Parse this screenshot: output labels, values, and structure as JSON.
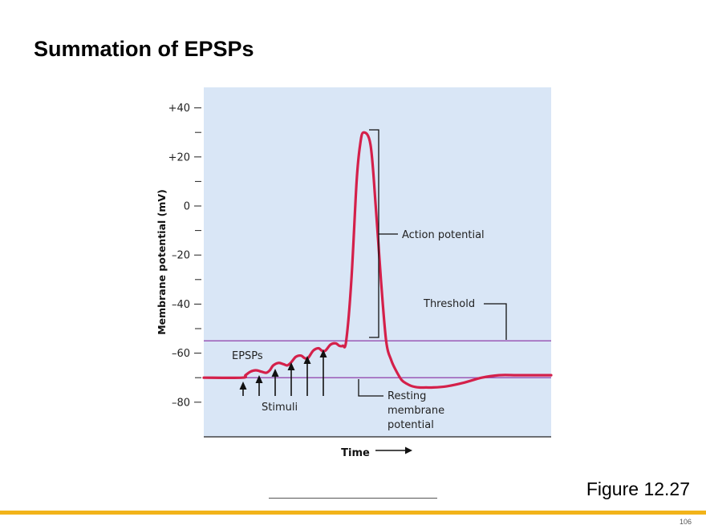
{
  "slide": {
    "title": "Summation of EPSPs",
    "figure_label": "Figure 12.27",
    "page_number": "106"
  },
  "colors": {
    "plot_bg": "#d9e6f6",
    "trace": "#d4204a",
    "threshold_line": "#9b59b6",
    "resting_line": "#9b59b6",
    "footer_accent": "#f2b31a"
  },
  "chart_data": {
    "type": "line",
    "title": "",
    "xlabel": "Time",
    "ylabel": "Membrane potential (mV)",
    "ylim": [
      -95,
      45
    ],
    "y_ticks": [
      40,
      20,
      0,
      -20,
      -40,
      -60,
      -80
    ],
    "y_tick_labels": [
      "+40",
      "+20",
      "0",
      "–20",
      "–40",
      "–60",
      "–80"
    ],
    "y_minor_ticks": [
      30,
      10,
      -10,
      -30,
      -50,
      -70
    ],
    "xlim": [
      0,
      100
    ],
    "threshold_mv": -55,
    "resting_mv": -70,
    "series": [
      {
        "name": "Membrane potential",
        "x": [
          0,
          11,
          12,
          13.5,
          15,
          16.5,
          18,
          19,
          20,
          21.5,
          23,
          24,
          25,
          26.5,
          28,
          29,
          30,
          31.5,
          33,
          34,
          35,
          36.5,
          38,
          39,
          40,
          41,
          42.5,
          44,
          45,
          46,
          48,
          49.5,
          51,
          52.5,
          54,
          55.5,
          57,
          58.5,
          60,
          62,
          64,
          66,
          70,
          75,
          80,
          85,
          90,
          95,
          100
        ],
        "y": [
          -70,
          -70,
          -69,
          -67.5,
          -67,
          -67.5,
          -68,
          -67,
          -65,
          -64,
          -64.5,
          -65,
          -64,
          -61.5,
          -61,
          -62,
          -62,
          -59,
          -58,
          -59,
          -59,
          -56.5,
          -56,
          -57,
          -57,
          -55,
          -30,
          10,
          25,
          30,
          25,
          0,
          -30,
          -55,
          -63,
          -67.5,
          -71,
          -72.5,
          -73.5,
          -74,
          -74,
          -74,
          -73.5,
          -72,
          -70,
          -69,
          -69,
          -69,
          -69
        ]
      }
    ],
    "stimuli_count": 6,
    "annotations": {
      "action_potential": "Action potential",
      "threshold": "Threshold",
      "epsps": "EPSPs",
      "stimuli": "Stimuli",
      "resting": [
        "Resting",
        "membrane",
        "potential"
      ]
    }
  }
}
